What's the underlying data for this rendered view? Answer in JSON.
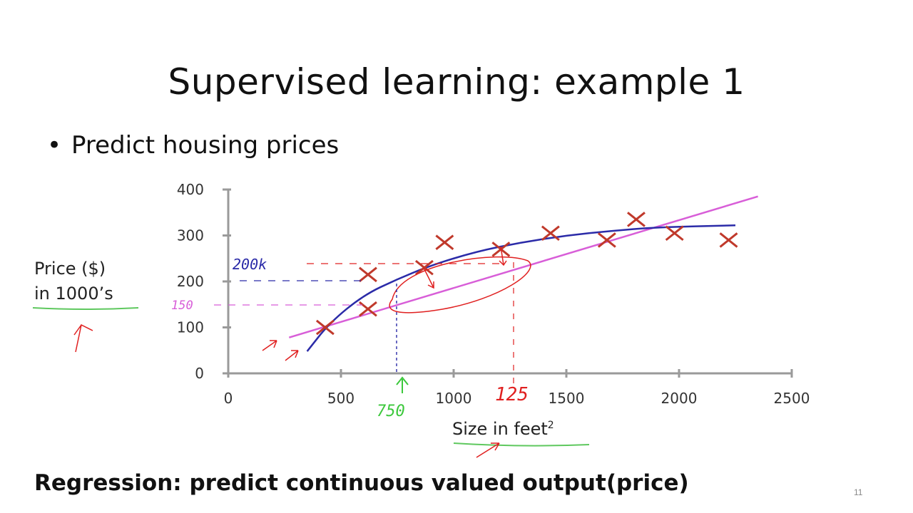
{
  "slide": {
    "title": "Supervised learning: example 1",
    "bullet": "Predict housing prices",
    "footer": "Regression: predict continuous valued output(price)",
    "page_number": "11"
  },
  "chart_data": {
    "type": "scatter",
    "title": "",
    "ylabel_line1": "Price ($)",
    "ylabel_line2": "in 1000’s",
    "xlabel": "Size in feet",
    "xlabel_sup": "2",
    "xlim": [
      0,
      2500
    ],
    "ylim": [
      0,
      400
    ],
    "x_ticks": [
      0,
      500,
      1000,
      1500,
      2000,
      2500
    ],
    "y_ticks": [
      0,
      100,
      200,
      300,
      400
    ],
    "grid": false,
    "series": [
      {
        "marker": "x",
        "color": "#c0392b",
        "points": [
          [
            430,
            100
          ],
          [
            620,
            215
          ],
          [
            620,
            140
          ],
          [
            870,
            230
          ],
          [
            960,
            285
          ],
          [
            1210,
            270
          ],
          [
            1430,
            305
          ],
          [
            1680,
            290
          ],
          [
            1810,
            335
          ],
          [
            1980,
            305
          ],
          [
            2220,
            290
          ]
        ]
      }
    ],
    "fits": [
      {
        "kind": "straight",
        "color": "#d85ed8",
        "points": [
          [
            270,
            78
          ],
          [
            2350,
            385
          ]
        ]
      },
      {
        "kind": "curve",
        "color": "#2b2ba8",
        "points": [
          [
            350,
            48
          ],
          [
            450,
            110
          ],
          [
            600,
            170
          ],
          [
            750,
            205
          ],
          [
            900,
            235
          ],
          [
            1100,
            265
          ],
          [
            1300,
            285
          ],
          [
            1500,
            300
          ],
          [
            1700,
            310
          ],
          [
            1900,
            318
          ],
          [
            2250,
            322
          ]
        ]
      }
    ],
    "annotations": {
      "handwritten_200k": "200k",
      "handwritten_150": "150",
      "handwritten_750": "750",
      "handwritten_1250": "125"
    }
  }
}
